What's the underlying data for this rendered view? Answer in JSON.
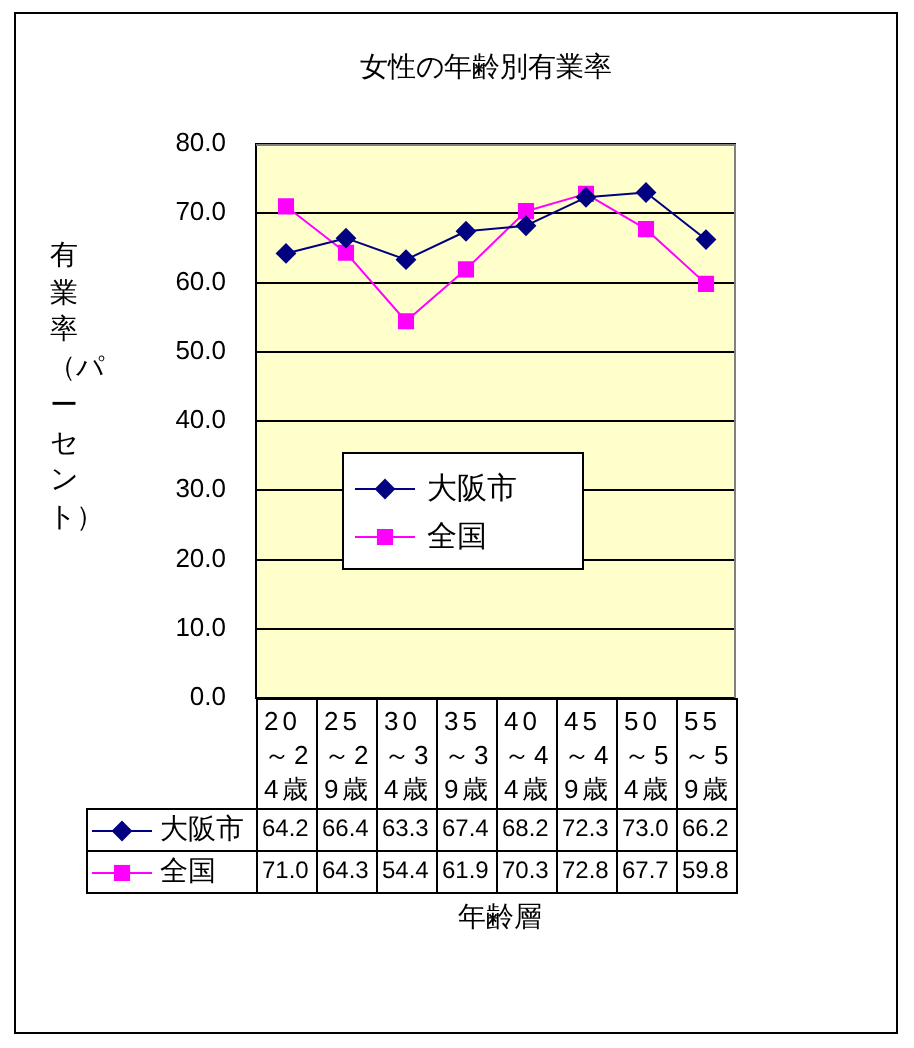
{
  "chart_data": {
    "type": "line",
    "title": "女性の年齢別有業率",
    "xlabel": "年齢層",
    "ylabel": "有業率（パーセント）",
    "categories": [
      "20～24歳",
      "25～29歳",
      "30～34歳",
      "35～39歳",
      "40～44歳",
      "45～49歳",
      "50～54歳",
      "55～59歳"
    ],
    "series": [
      {
        "name": "大阪市",
        "color": "#000080",
        "marker": "diamond",
        "values": [
          64.2,
          66.4,
          63.3,
          67.4,
          68.2,
          72.3,
          73.0,
          66.2
        ],
        "value_labels": [
          "64.2",
          "66.4",
          "63.3",
          "67.4",
          "68.2",
          "72.3",
          "73.0",
          "66.2"
        ]
      },
      {
        "name": "全国",
        "color": "#ff00ff",
        "marker": "square",
        "values": [
          71.0,
          64.3,
          54.4,
          61.9,
          70.3,
          72.8,
          67.7,
          59.8
        ],
        "value_labels": [
          "71.0",
          "64.3",
          "54.4",
          "61.9",
          "70.3",
          "72.8",
          "67.7",
          "59.8"
        ]
      }
    ],
    "ylim": [
      0,
      80
    ],
    "yticks": [
      {
        "value": 0,
        "label": "0.0"
      },
      {
        "value": 10,
        "label": "10.0"
      },
      {
        "value": 20,
        "label": "20.0"
      },
      {
        "value": 30,
        "label": "30.0"
      },
      {
        "value": 40,
        "label": "40.0"
      },
      {
        "value": 50,
        "label": "50.0"
      },
      {
        "value": 60,
        "label": "60.0"
      },
      {
        "value": 70,
        "label": "70.0"
      },
      {
        "value": 80,
        "label": "80.0"
      }
    ],
    "grid": "y",
    "legend": "center"
  }
}
